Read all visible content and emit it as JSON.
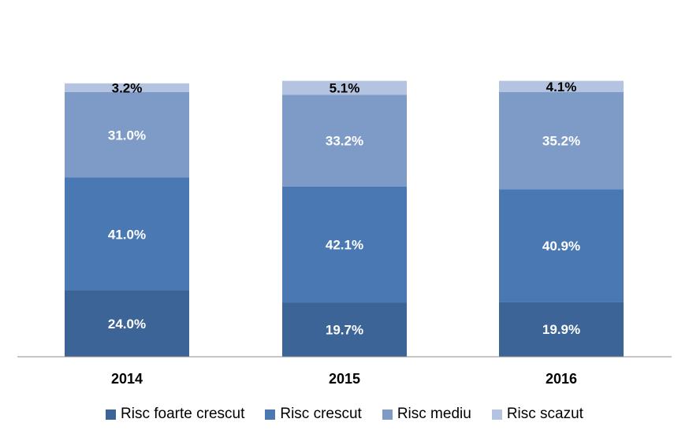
{
  "chart_data": {
    "type": "bar",
    "stacked": true,
    "categories": [
      "2014",
      "2015",
      "2016"
    ],
    "series": [
      {
        "name": "Risc foarte crescut",
        "values": [
          24.0,
          19.7,
          19.9
        ],
        "labels": [
          "24.0%",
          "19.7%",
          "19.9%"
        ],
        "color": "#3C6497",
        "label_color": "#ffffff"
      },
      {
        "name": "Risc crescut",
        "values": [
          41.0,
          42.1,
          40.9
        ],
        "labels": [
          "41.0%",
          "42.1%",
          "40.9%"
        ],
        "color": "#4978B2",
        "label_color": "#ffffff"
      },
      {
        "name": "Risc mediu",
        "values": [
          31.0,
          33.2,
          35.2
        ],
        "labels": [
          "31.0%",
          "33.2%",
          "35.2%"
        ],
        "color": "#7E9BC8",
        "label_color": "#ffffff"
      },
      {
        "name": "Risc scazut",
        "values": [
          3.2,
          5.1,
          4.1
        ],
        "labels": [
          "3.2%",
          "5.1%",
          "4.1%"
        ],
        "color": "#B4C3DF",
        "label_color": "#000000"
      }
    ],
    "title": "",
    "xlabel": "",
    "ylabel": "",
    "ylim": [
      0,
      100
    ],
    "grid": false,
    "legend_position": "bottom"
  }
}
